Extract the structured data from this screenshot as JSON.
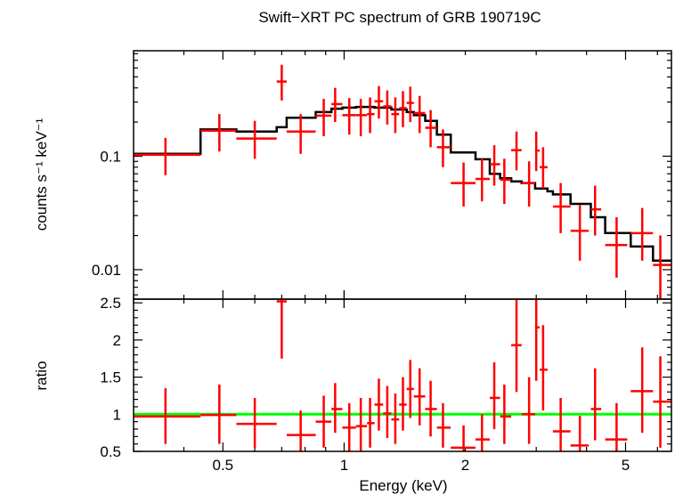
{
  "colors": {
    "data": "#ff0000",
    "model": "#000000",
    "unity": "#00ff00",
    "axis": "#000000"
  },
  "chart_data": [
    {
      "type": "scatter",
      "title": "Swift−XRT PC spectrum of GRB 190719C",
      "xlabel": "",
      "ylabel": "counts s⁻¹ keV⁻¹",
      "xscale": "log",
      "yscale": "log",
      "xlim": [
        0.3,
        6.5
      ],
      "ylim": [
        0.0055,
        0.85
      ],
      "yticks": [
        {
          "value": 0.1,
          "label": "0.1"
        },
        {
          "value": 0.01,
          "label": "0.01"
        }
      ],
      "series": [
        {
          "kind": "data-with-errors",
          "points": [
            {
              "x": 0.36,
              "xlo": 0.3,
              "xhi": 0.44,
              "y": 0.103,
              "ylo": 0.068,
              "yhi": 0.145
            },
            {
              "x": 0.49,
              "xlo": 0.44,
              "xhi": 0.54,
              "y": 0.168,
              "ylo": 0.11,
              "yhi": 0.235
            },
            {
              "x": 0.6,
              "xlo": 0.54,
              "xhi": 0.68,
              "y": 0.143,
              "ylo": 0.095,
              "yhi": 0.205
            },
            {
              "x": 0.7,
              "xlo": 0.68,
              "xhi": 0.72,
              "y": 0.455,
              "ylo": 0.31,
              "yhi": 0.64
            },
            {
              "x": 0.78,
              "xlo": 0.72,
              "xhi": 0.85,
              "y": 0.165,
              "ylo": 0.105,
              "yhi": 0.235
            },
            {
              "x": 0.89,
              "xlo": 0.85,
              "xhi": 0.93,
              "y": 0.228,
              "ylo": 0.15,
              "yhi": 0.32
            },
            {
              "x": 0.95,
              "xlo": 0.93,
              "xhi": 0.99,
              "y": 0.288,
              "ylo": 0.2,
              "yhi": 0.4
            },
            {
              "x": 1.03,
              "xlo": 0.99,
              "xhi": 1.07,
              "y": 0.23,
              "ylo": 0.155,
              "yhi": 0.325
            },
            {
              "x": 1.1,
              "xlo": 1.07,
              "xhi": 1.14,
              "y": 0.23,
              "ylo": 0.15,
              "yhi": 0.32
            },
            {
              "x": 1.16,
              "xlo": 1.14,
              "xhi": 1.19,
              "y": 0.235,
              "ylo": 0.16,
              "yhi": 0.33
            },
            {
              "x": 1.22,
              "xlo": 1.19,
              "xhi": 1.25,
              "y": 0.305,
              "ylo": 0.215,
              "yhi": 0.415
            },
            {
              "x": 1.28,
              "xlo": 1.25,
              "xhi": 1.31,
              "y": 0.275,
              "ylo": 0.19,
              "yhi": 0.38
            },
            {
              "x": 1.34,
              "xlo": 1.31,
              "xhi": 1.37,
              "y": 0.235,
              "ylo": 0.16,
              "yhi": 0.33
            },
            {
              "x": 1.4,
              "xlo": 1.37,
              "xhi": 1.43,
              "y": 0.265,
              "ylo": 0.18,
              "yhi": 0.375
            },
            {
              "x": 1.46,
              "xlo": 1.43,
              "xhi": 1.49,
              "y": 0.295,
              "ylo": 0.2,
              "yhi": 0.41
            },
            {
              "x": 1.54,
              "xlo": 1.49,
              "xhi": 1.59,
              "y": 0.24,
              "ylo": 0.16,
              "yhi": 0.34
            },
            {
              "x": 1.64,
              "xlo": 1.59,
              "xhi": 1.7,
              "y": 0.178,
              "ylo": 0.12,
              "yhi": 0.255
            },
            {
              "x": 1.76,
              "xlo": 1.7,
              "xhi": 1.84,
              "y": 0.12,
              "ylo": 0.08,
              "yhi": 0.172
            },
            {
              "x": 1.98,
              "xlo": 1.84,
              "xhi": 2.12,
              "y": 0.058,
              "ylo": 0.036,
              "yhi": 0.088
            },
            {
              "x": 2.2,
              "xlo": 2.12,
              "xhi": 2.3,
              "y": 0.063,
              "ylo": 0.04,
              "yhi": 0.095
            },
            {
              "x": 2.36,
              "xlo": 2.3,
              "xhi": 2.44,
              "y": 0.085,
              "ylo": 0.055,
              "yhi": 0.125
            },
            {
              "x": 2.5,
              "xlo": 2.44,
              "xhi": 2.6,
              "y": 0.062,
              "ylo": 0.038,
              "yhi": 0.095
            },
            {
              "x": 2.68,
              "xlo": 2.6,
              "xhi": 2.76,
              "y": 0.113,
              "ylo": 0.075,
              "yhi": 0.165
            },
            {
              "x": 2.88,
              "xlo": 2.76,
              "xhi": 2.98,
              "y": 0.058,
              "ylo": 0.036,
              "yhi": 0.09
            },
            {
              "x": 3.0,
              "xlo": 2.98,
              "xhi": 3.06,
              "y": 0.112,
              "ylo": 0.074,
              "yhi": 0.165
            },
            {
              "x": 3.12,
              "xlo": 3.06,
              "xhi": 3.2,
              "y": 0.08,
              "ylo": 0.052,
              "yhi": 0.12
            },
            {
              "x": 3.45,
              "xlo": 3.3,
              "xhi": 3.65,
              "y": 0.036,
              "ylo": 0.021,
              "yhi": 0.058
            },
            {
              "x": 3.85,
              "xlo": 3.65,
              "xhi": 4.05,
              "y": 0.022,
              "ylo": 0.012,
              "yhi": 0.037
            },
            {
              "x": 4.2,
              "xlo": 4.1,
              "xhi": 4.35,
              "y": 0.034,
              "ylo": 0.02,
              "yhi": 0.055
            },
            {
              "x": 4.75,
              "xlo": 4.45,
              "xhi": 5.05,
              "y": 0.0165,
              "ylo": 0.0085,
              "yhi": 0.029
            },
            {
              "x": 5.5,
              "xlo": 5.15,
              "xhi": 5.85,
              "y": 0.021,
              "ylo": 0.012,
              "yhi": 0.035
            },
            {
              "x": 6.1,
              "xlo": 5.85,
              "xhi": 6.5,
              "y": 0.011,
              "ylo": 0.0055,
              "yhi": 0.02
            }
          ]
        },
        {
          "kind": "model-step",
          "steps": [
            {
              "x0": 0.3,
              "x1": 0.44,
              "y": 0.105
            },
            {
              "x0": 0.44,
              "x1": 0.54,
              "y": 0.172
            },
            {
              "x0": 0.54,
              "x1": 0.68,
              "y": 0.165
            },
            {
              "x0": 0.68,
              "x1": 0.72,
              "y": 0.18
            },
            {
              "x0": 0.72,
              "x1": 0.85,
              "y": 0.218
            },
            {
              "x0": 0.85,
              "x1": 0.93,
              "y": 0.245
            },
            {
              "x0": 0.93,
              "x1": 0.99,
              "y": 0.262
            },
            {
              "x0": 0.99,
              "x1": 1.07,
              "y": 0.268
            },
            {
              "x0": 1.07,
              "x1": 1.19,
              "y": 0.272
            },
            {
              "x0": 1.19,
              "x1": 1.31,
              "y": 0.268
            },
            {
              "x0": 1.31,
              "x1": 1.43,
              "y": 0.258
            },
            {
              "x0": 1.43,
              "x1": 1.49,
              "y": 0.245
            },
            {
              "x0": 1.49,
              "x1": 1.59,
              "y": 0.23
            },
            {
              "x0": 1.59,
              "x1": 1.7,
              "y": 0.205
            },
            {
              "x0": 1.7,
              "x1": 1.84,
              "y": 0.155
            },
            {
              "x0": 1.84,
              "x1": 2.12,
              "y": 0.108
            },
            {
              "x0": 2.12,
              "x1": 2.3,
              "y": 0.094
            },
            {
              "x0": 2.3,
              "x1": 2.44,
              "y": 0.07
            },
            {
              "x0": 2.44,
              "x1": 2.6,
              "y": 0.064
            },
            {
              "x0": 2.6,
              "x1": 2.76,
              "y": 0.06
            },
            {
              "x0": 2.76,
              "x1": 2.98,
              "y": 0.058
            },
            {
              "x0": 2.98,
              "x1": 3.2,
              "y": 0.052
            },
            {
              "x0": 3.2,
              "x1": 3.3,
              "y": 0.049
            },
            {
              "x0": 3.3,
              "x1": 3.65,
              "y": 0.046
            },
            {
              "x0": 3.65,
              "x1": 4.1,
              "y": 0.038
            },
            {
              "x0": 4.1,
              "x1": 4.45,
              "y": 0.029
            },
            {
              "x0": 4.45,
              "x1": 5.15,
              "y": 0.021
            },
            {
              "x0": 5.15,
              "x1": 5.85,
              "y": 0.016
            },
            {
              "x0": 5.85,
              "x1": 6.5,
              "y": 0.012
            }
          ]
        }
      ]
    },
    {
      "type": "scatter",
      "xlabel": "Energy (keV)",
      "ylabel": "ratio",
      "xscale": "log",
      "yscale": "linear",
      "xlim": [
        0.3,
        6.5
      ],
      "ylim": [
        0.5,
        2.55
      ],
      "xticks": [
        {
          "value": 0.5,
          "label": "0.5"
        },
        {
          "value": 1,
          "label": "1"
        },
        {
          "value": 2,
          "label": "2"
        },
        {
          "value": 5,
          "label": "5"
        }
      ],
      "yticks": [
        {
          "value": 0.5,
          "label": "0.5"
        },
        {
          "value": 1,
          "label": "1"
        },
        {
          "value": 1.5,
          "label": "1.5"
        },
        {
          "value": 2,
          "label": "2"
        },
        {
          "value": 2.5,
          "label": "2.5"
        }
      ],
      "reference_line": {
        "y": 1
      },
      "series": [
        {
          "kind": "data-with-errors",
          "points": [
            {
              "x": 0.36,
              "xlo": 0.3,
              "xhi": 0.44,
              "y": 0.97,
              "ylo": 0.6,
              "yhi": 1.35
            },
            {
              "x": 0.49,
              "xlo": 0.44,
              "xhi": 0.54,
              "y": 0.99,
              "ylo": 0.6,
              "yhi": 1.4
            },
            {
              "x": 0.6,
              "xlo": 0.54,
              "xhi": 0.68,
              "y": 0.87,
              "ylo": 0.55,
              "yhi": 1.22
            },
            {
              "x": 0.7,
              "xlo": 0.68,
              "xhi": 0.72,
              "y": 2.52,
              "ylo": 1.75,
              "yhi": 2.55
            },
            {
              "x": 0.78,
              "xlo": 0.72,
              "xhi": 0.85,
              "y": 0.72,
              "ylo": 0.5,
              "yhi": 1.05
            },
            {
              "x": 0.89,
              "xlo": 0.85,
              "xhi": 0.93,
              "y": 0.9,
              "ylo": 0.55,
              "yhi": 1.25
            },
            {
              "x": 0.95,
              "xlo": 0.93,
              "xhi": 0.99,
              "y": 1.07,
              "ylo": 0.75,
              "yhi": 1.42
            },
            {
              "x": 1.03,
              "xlo": 0.99,
              "xhi": 1.07,
              "y": 0.82,
              "ylo": 0.5,
              "yhi": 1.15
            },
            {
              "x": 1.1,
              "xlo": 1.07,
              "xhi": 1.14,
              "y": 0.84,
              "ylo": 0.5,
              "yhi": 1.22
            },
            {
              "x": 1.16,
              "xlo": 1.14,
              "xhi": 1.19,
              "y": 0.88,
              "ylo": 0.55,
              "yhi": 1.22
            },
            {
              "x": 1.22,
              "xlo": 1.19,
              "xhi": 1.25,
              "y": 1.13,
              "ylo": 0.78,
              "yhi": 1.48
            },
            {
              "x": 1.28,
              "xlo": 1.25,
              "xhi": 1.31,
              "y": 1.01,
              "ylo": 0.68,
              "yhi": 1.38
            },
            {
              "x": 1.34,
              "xlo": 1.31,
              "xhi": 1.37,
              "y": 0.93,
              "ylo": 0.6,
              "yhi": 1.28
            },
            {
              "x": 1.4,
              "xlo": 1.37,
              "xhi": 1.43,
              "y": 1.13,
              "ylo": 0.78,
              "yhi": 1.5
            },
            {
              "x": 1.46,
              "xlo": 1.43,
              "xhi": 1.49,
              "y": 1.34,
              "ylo": 0.95,
              "yhi": 1.73
            },
            {
              "x": 1.54,
              "xlo": 1.49,
              "xhi": 1.59,
              "y": 1.24,
              "ylo": 0.85,
              "yhi": 1.62
            },
            {
              "x": 1.64,
              "xlo": 1.59,
              "xhi": 1.7,
              "y": 1.07,
              "ylo": 0.7,
              "yhi": 1.45
            },
            {
              "x": 1.76,
              "xlo": 1.7,
              "xhi": 1.84,
              "y": 0.82,
              "ylo": 0.55,
              "yhi": 1.15
            },
            {
              "x": 1.98,
              "xlo": 1.84,
              "xhi": 2.12,
              "y": 0.55,
              "ylo": 0.5,
              "yhi": 0.85
            },
            {
              "x": 2.2,
              "xlo": 2.12,
              "xhi": 2.3,
              "y": 0.66,
              "ylo": 0.5,
              "yhi": 1.0
            },
            {
              "x": 2.36,
              "xlo": 2.3,
              "xhi": 2.44,
              "y": 1.22,
              "ylo": 0.8,
              "yhi": 1.7
            },
            {
              "x": 2.5,
              "xlo": 2.44,
              "xhi": 2.6,
              "y": 0.97,
              "ylo": 0.6,
              "yhi": 1.4
            },
            {
              "x": 2.68,
              "xlo": 2.6,
              "xhi": 2.76,
              "y": 1.93,
              "ylo": 1.3,
              "yhi": 2.55
            },
            {
              "x": 2.88,
              "xlo": 2.76,
              "xhi": 2.98,
              "y": 1.0,
              "ylo": 0.6,
              "yhi": 1.5
            },
            {
              "x": 3.0,
              "xlo": 2.98,
              "xhi": 3.06,
              "y": 2.17,
              "ylo": 1.45,
              "yhi": 2.55
            },
            {
              "x": 3.12,
              "xlo": 3.06,
              "xhi": 3.2,
              "y": 1.6,
              "ylo": 1.05,
              "yhi": 2.2
            },
            {
              "x": 3.45,
              "xlo": 3.3,
              "xhi": 3.65,
              "y": 0.77,
              "ylo": 0.5,
              "yhi": 1.22
            },
            {
              "x": 3.85,
              "xlo": 3.65,
              "xhi": 4.05,
              "y": 0.58,
              "ylo": 0.5,
              "yhi": 0.98
            },
            {
              "x": 4.2,
              "xlo": 4.1,
              "xhi": 4.35,
              "y": 1.07,
              "ylo": 0.65,
              "yhi": 1.62
            },
            {
              "x": 4.75,
              "xlo": 4.45,
              "xhi": 5.05,
              "y": 0.66,
              "ylo": 0.5,
              "yhi": 1.15
            },
            {
              "x": 5.5,
              "xlo": 5.15,
              "xhi": 5.85,
              "y": 1.31,
              "ylo": 0.75,
              "yhi": 1.9
            },
            {
              "x": 6.1,
              "xlo": 5.85,
              "xhi": 6.5,
              "y": 1.17,
              "ylo": 0.55,
              "yhi": 1.78
            }
          ]
        }
      ]
    }
  ]
}
